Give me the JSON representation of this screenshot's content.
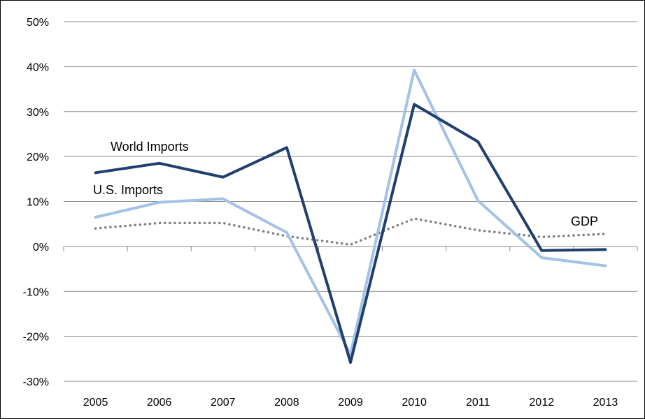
{
  "chart_data": {
    "type": "line",
    "title": "",
    "xlabel": "",
    "ylabel": "",
    "ylim": [
      -30,
      50
    ],
    "y_ticks": [
      "50%",
      "40%",
      "30%",
      "20%",
      "10%",
      "0%",
      "-10%",
      "-20%",
      "-30%"
    ],
    "x": [
      "2005",
      "2006",
      "2007",
      "2008",
      "2009",
      "2010",
      "2011",
      "2012",
      "2013"
    ],
    "grid": "horizontal",
    "legend": "inline labels",
    "series": [
      {
        "name": "World Imports",
        "color": "#1f3f6e",
        "style": "solid",
        "values": [
          16.4,
          18.5,
          15.4,
          22.0,
          -25.8,
          31.6,
          23.3,
          -0.9,
          -0.7
        ]
      },
      {
        "name": "U.S. Imports",
        "color": "#a4c2e6",
        "style": "solid",
        "values": [
          6.5,
          9.8,
          10.6,
          3.1,
          -24.0,
          39.2,
          10.2,
          -2.5,
          -4.3
        ]
      },
      {
        "name": "GDP",
        "color": "#7f7f7f",
        "style": "dotted",
        "values": [
          4.0,
          5.2,
          5.2,
          2.3,
          0.4,
          6.2,
          3.6,
          2.1,
          2.8
        ]
      }
    ]
  }
}
